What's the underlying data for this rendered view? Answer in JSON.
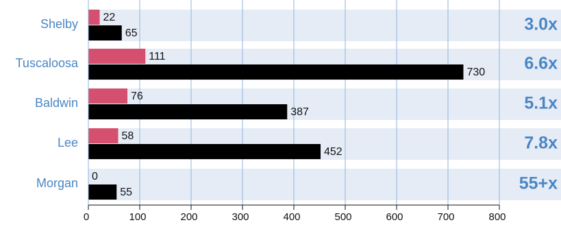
{
  "chart_data": {
    "type": "bar",
    "orientation": "horizontal",
    "categories": [
      "Shelby",
      "Tuscaloosa",
      "Baldwin",
      "Lee",
      "Morgan"
    ],
    "series": [
      {
        "values": [
          22,
          111,
          76,
          58,
          0
        ],
        "color": "#d4506e"
      },
      {
        "values": [
          65,
          730,
          387,
          452,
          55
        ],
        "color": "#000000"
      }
    ],
    "ratios": [
      "3.0x",
      "6.6x",
      "5.1x",
      "7.8x",
      "55+x"
    ],
    "xlim": [
      0,
      800
    ],
    "xticks": [
      0,
      100,
      200,
      300,
      400,
      500,
      600,
      700,
      800
    ],
    "grid": true,
    "row_band_color": "#e6ecf6",
    "grid_color": "#8fb3dc",
    "label_color": "#4a86c5"
  }
}
